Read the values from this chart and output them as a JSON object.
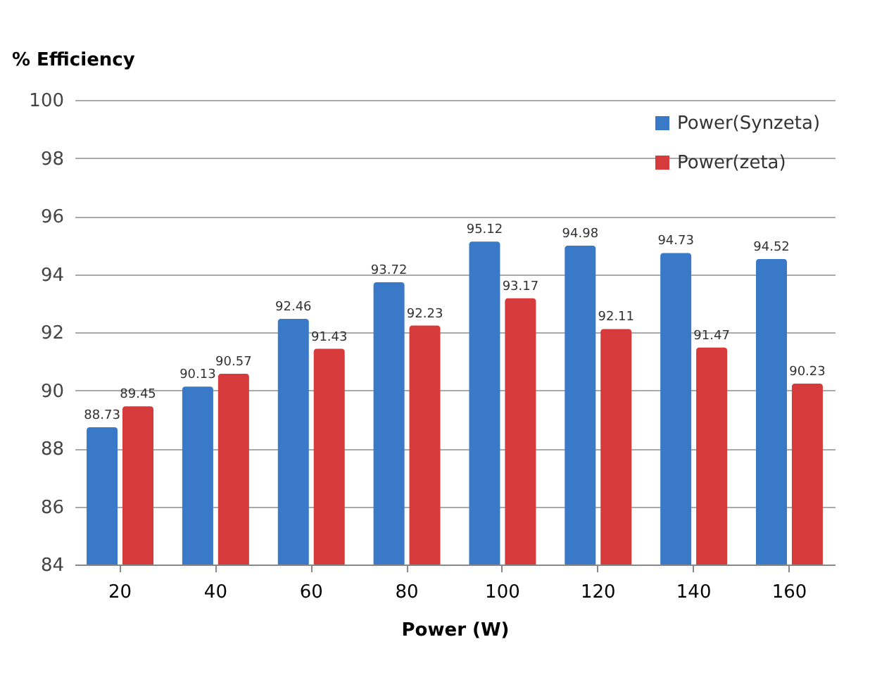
{
  "chart_data": {
    "type": "bar",
    "xlabel": "Power (W)",
    "ylabel": "% Efficiency",
    "categories": [
      "20",
      "40",
      "60",
      "80",
      "100",
      "120",
      "140",
      "160"
    ],
    "series": [
      {
        "name": "Power(Synzeta)",
        "color": "#3a78c8",
        "values": [
          88.73,
          90.13,
          92.46,
          93.72,
          95.12,
          94.98,
          94.73,
          94.52
        ]
      },
      {
        "name": "Power(zeta)",
        "color": "#d63a3a",
        "values": [
          89.45,
          90.57,
          91.43,
          92.23,
          93.17,
          92.11,
          91.47,
          90.23
        ]
      }
    ],
    "ylim": [
      84,
      100
    ],
    "yticks": [
      84,
      86,
      88,
      90,
      92,
      94,
      96,
      98,
      100
    ],
    "grid": "y",
    "legend": "top right",
    "data_labels": true
  }
}
